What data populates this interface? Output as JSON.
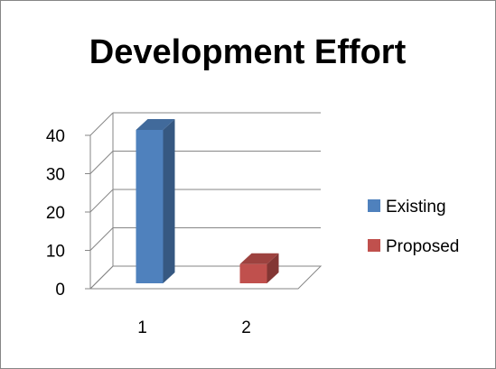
{
  "chart_data": {
    "type": "bar",
    "title": "Development Effort",
    "xlabel": "",
    "ylabel": "",
    "categories": [
      "1",
      "2"
    ],
    "series": [
      {
        "name": "Existing",
        "values": [
          40,
          null
        ],
        "color": "#4f81bd"
      },
      {
        "name": "Proposed",
        "values": [
          null,
          5
        ],
        "color": "#c0504d"
      }
    ],
    "ylim": [
      0,
      40
    ],
    "y_ticks": [
      "0",
      "10",
      "20",
      "30",
      "40"
    ],
    "grid": true,
    "three_d": true,
    "legend_position": "right",
    "frame_color": "#868686",
    "grid_color": "#868686"
  }
}
